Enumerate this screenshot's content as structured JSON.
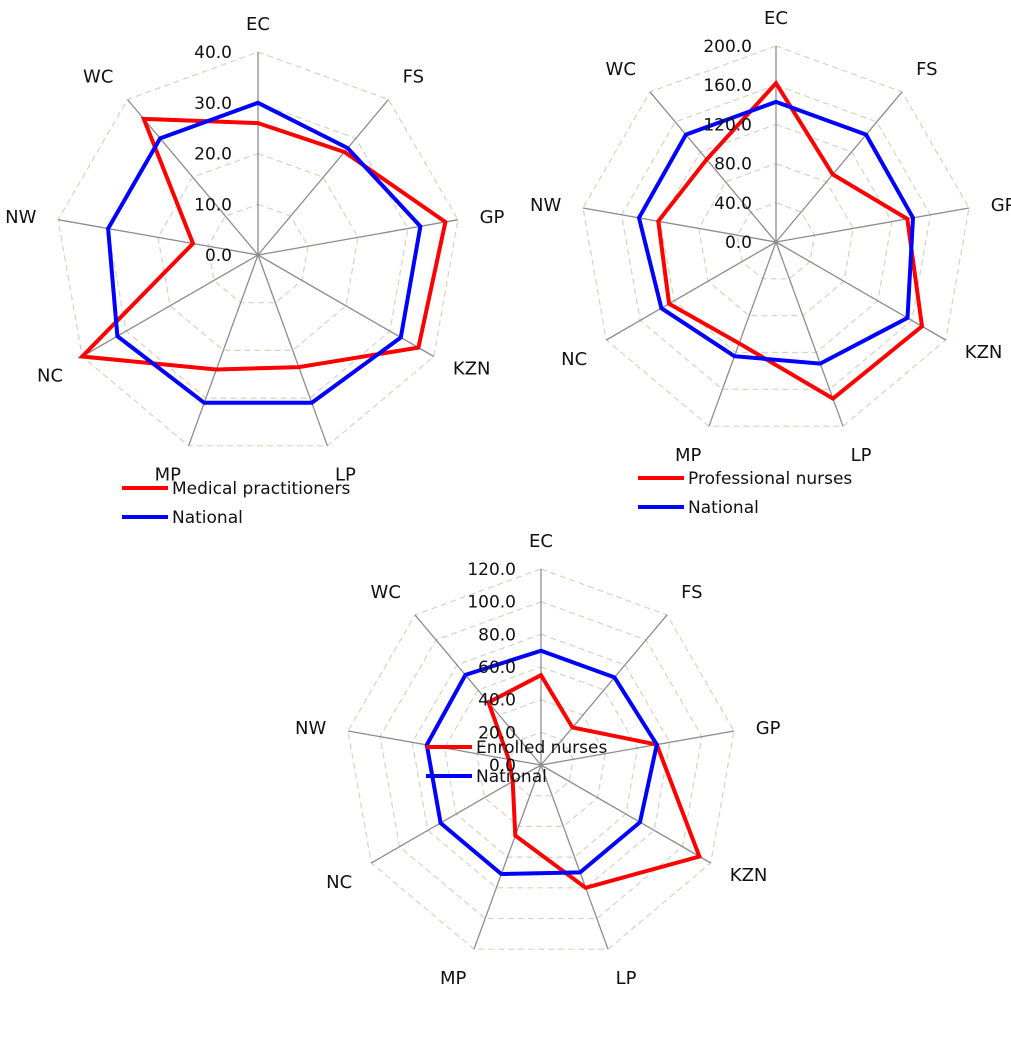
{
  "chart_data": [
    {
      "type": "radar",
      "categories": [
        "EC",
        "FS",
        "GP",
        "KZN",
        "LP",
        "MP",
        "NC",
        "NW",
        "WC"
      ],
      "rlim": [
        0,
        40
      ],
      "ticks": [
        "0.0",
        "10.0",
        "20.0",
        "30.0",
        "40.0"
      ],
      "grid": true,
      "legend_position": "bottom",
      "series": [
        {
          "name": "Medical practitioners",
          "color": "#ff0000",
          "values": [
            26,
            26.5,
            37.5,
            36.5,
            23.5,
            24,
            40,
            13,
            35
          ]
        },
        {
          "name": "National",
          "color": "#0000ff",
          "values": [
            30,
            27.5,
            32.5,
            32.5,
            31,
            31,
            32,
            30,
            30
          ]
        }
      ]
    },
    {
      "type": "radar",
      "categories": [
        "EC",
        "FS",
        "GP",
        "KZN",
        "LP",
        "MP",
        "NC",
        "NW",
        "WC"
      ],
      "rlim": [
        0,
        200
      ],
      "ticks": [
        "0.0",
        "40.0",
        "80.0",
        "120.0",
        "160.0",
        "200.0"
      ],
      "grid": true,
      "legend_position": "bottom",
      "series": [
        {
          "name": "Professional nurses",
          "color": "#ff0000",
          "values": [
            162,
            90,
            136,
            172,
            170,
            110,
            126,
            122,
            110
          ]
        },
        {
          "name": "National",
          "color": "#0000ff",
          "values": [
            143,
            143,
            142,
            155,
            132,
            124,
            135,
            142,
            143
          ]
        }
      ]
    },
    {
      "type": "radar",
      "categories": [
        "EC",
        "FS",
        "GP",
        "KZN",
        "LP",
        "MP",
        "NC",
        "NW",
        "WC"
      ],
      "rlim": [
        0,
        120
      ],
      "ticks": [
        "0.0",
        "20.0",
        "40.0",
        "60.0",
        "80.0",
        "100.0",
        "120.0"
      ],
      "grid": true,
      "legend_position": "bottom",
      "series": [
        {
          "name": "Enrolled nurses",
          "color": "#ff0000",
          "values": [
            55,
            30,
            72,
            112,
            80,
            46,
            20,
            20,
            50
          ]
        },
        {
          "name": "National",
          "color": "#0000ff",
          "values": [
            70,
            70,
            72,
            70,
            70,
            71,
            71,
            71,
            72
          ]
        }
      ]
    }
  ]
}
